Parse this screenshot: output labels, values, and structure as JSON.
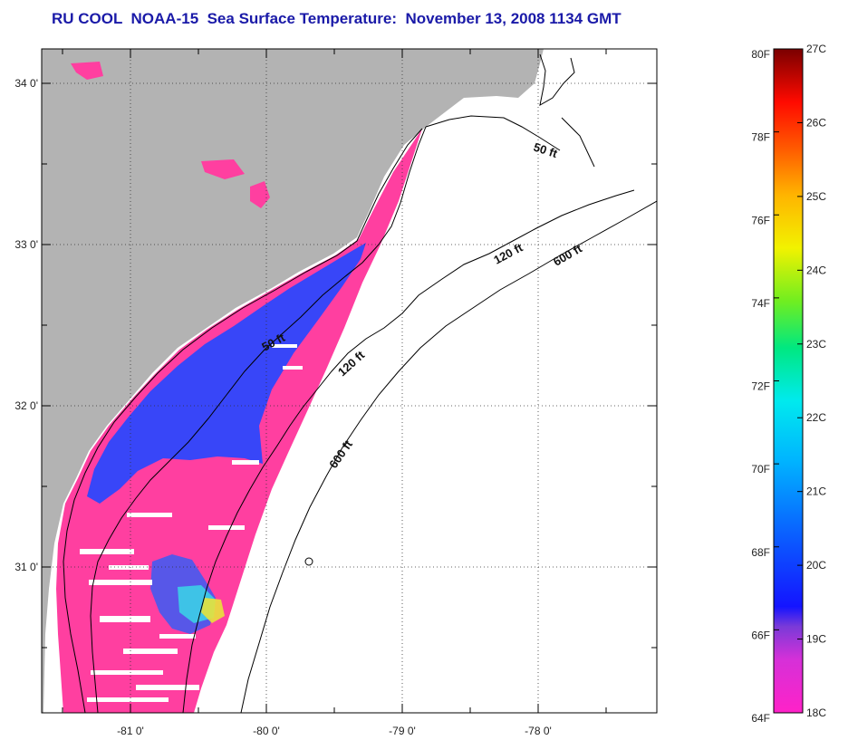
{
  "title": "RU COOL  NOAA-15  Sea Surface Temperature:  November 13, 2008 1134 GMT",
  "map": {
    "lon_ticks": [
      {
        "value": -81,
        "label": "-81 0'"
      },
      {
        "value": -80,
        "label": "-80 0'"
      },
      {
        "value": -79,
        "label": "-79 0'"
      },
      {
        "value": -78,
        "label": "-78 0'"
      }
    ],
    "lat_ticks": [
      {
        "value": 34,
        "label": "34 0'"
      },
      {
        "value": 33,
        "label": "33 0'"
      },
      {
        "value": 32,
        "label": "32 0'"
      },
      {
        "value": 31,
        "label": "31 0'"
      }
    ],
    "contour_labels": [
      "50 ft",
      "50 ft",
      "120 ft",
      "120 ft",
      "600 ft",
      "600 ft"
    ],
    "colors": {
      "land": "#b3b3b3",
      "ocean_nodata": "#ffffff",
      "cold_pink": "#ff3fa0",
      "blue": "#1f3cff",
      "contour": "#000000"
    }
  },
  "colorbar": {
    "fahrenheit_labels": [
      "80F",
      "78F",
      "76F",
      "74F",
      "72F",
      "70F",
      "68F",
      "66F",
      "64F"
    ],
    "celsius_labels": [
      "27C",
      "26C",
      "25C",
      "24C",
      "23C",
      "22C",
      "21C",
      "20C",
      "19C",
      "18C"
    ],
    "f_range": [
      64,
      80
    ],
    "c_range": [
      18,
      27
    ]
  }
}
